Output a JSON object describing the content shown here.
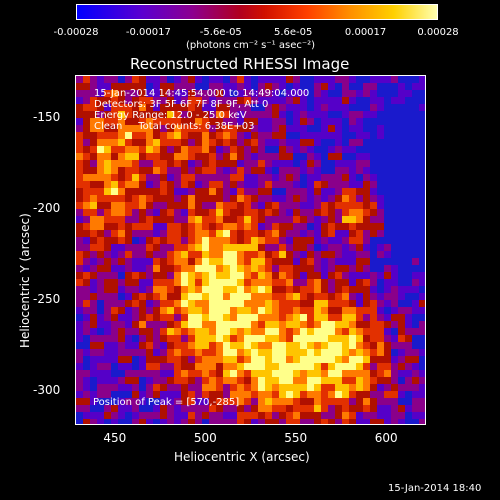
{
  "colorbar": {
    "ticks": [
      "-0.00028",
      "-0.00017",
      "-5.6e-05",
      "5.6e-05",
      "0.00017",
      "0.00028"
    ],
    "unit": "(photons cm⁻² s⁻¹ asec⁻²)",
    "colors": [
      "#1a1acc",
      "#5500c8",
      "#8a008a",
      "#b01000",
      "#e23000",
      "#ff7a00",
      "#ffc400",
      "#ffff8a"
    ]
  },
  "chart_data": {
    "type": "heatmap",
    "title": "Reconstructed RHESSI Image",
    "xlabel": "Heliocentric X (arcsec)",
    "ylabel": "Heliocentric Y (arcsec)",
    "xlim": [
      428,
      622
    ],
    "ylim": [
      -319,
      -127
    ],
    "xticks": [
      450,
      500,
      550,
      600
    ],
    "yticks": [
      -150,
      -200,
      -250,
      -300
    ],
    "annotation_lines": [
      "15-Jan-2014 14:45:54.000 to 14:49:04.000",
      "Detectors: 3F 5F 6F 7F 8F 9F, Att 0",
      "Energy Range: 12.0 - 25.0 keV",
      "Clean     Total counts: 6.38E+03"
    ],
    "peak_label": "Position of Peak = [570,-285]"
  },
  "timestamp": "15-Jan-2014 18:40"
}
